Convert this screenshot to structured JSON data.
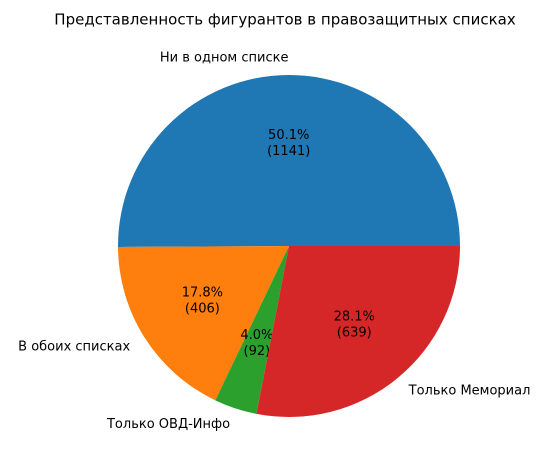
{
  "chart_data": {
    "type": "pie",
    "title": "Представленность фигурантов в правозащитных списках",
    "categories": [
      "Ни в одном списке",
      "В обоих списках",
      "Только ОВД-Инфо",
      "Только Мемориал"
    ],
    "values": [
      1141,
      406,
      92,
      639
    ],
    "value_labels": [
      "(1141)",
      "(406)",
      "(92)",
      "(639)"
    ],
    "percent_labels": [
      "50.1%",
      "17.8%",
      "4.0%",
      "28.1%"
    ],
    "colors": [
      "#1f77b4",
      "#ff7f0e",
      "#2ca02c",
      "#d62728"
    ]
  }
}
